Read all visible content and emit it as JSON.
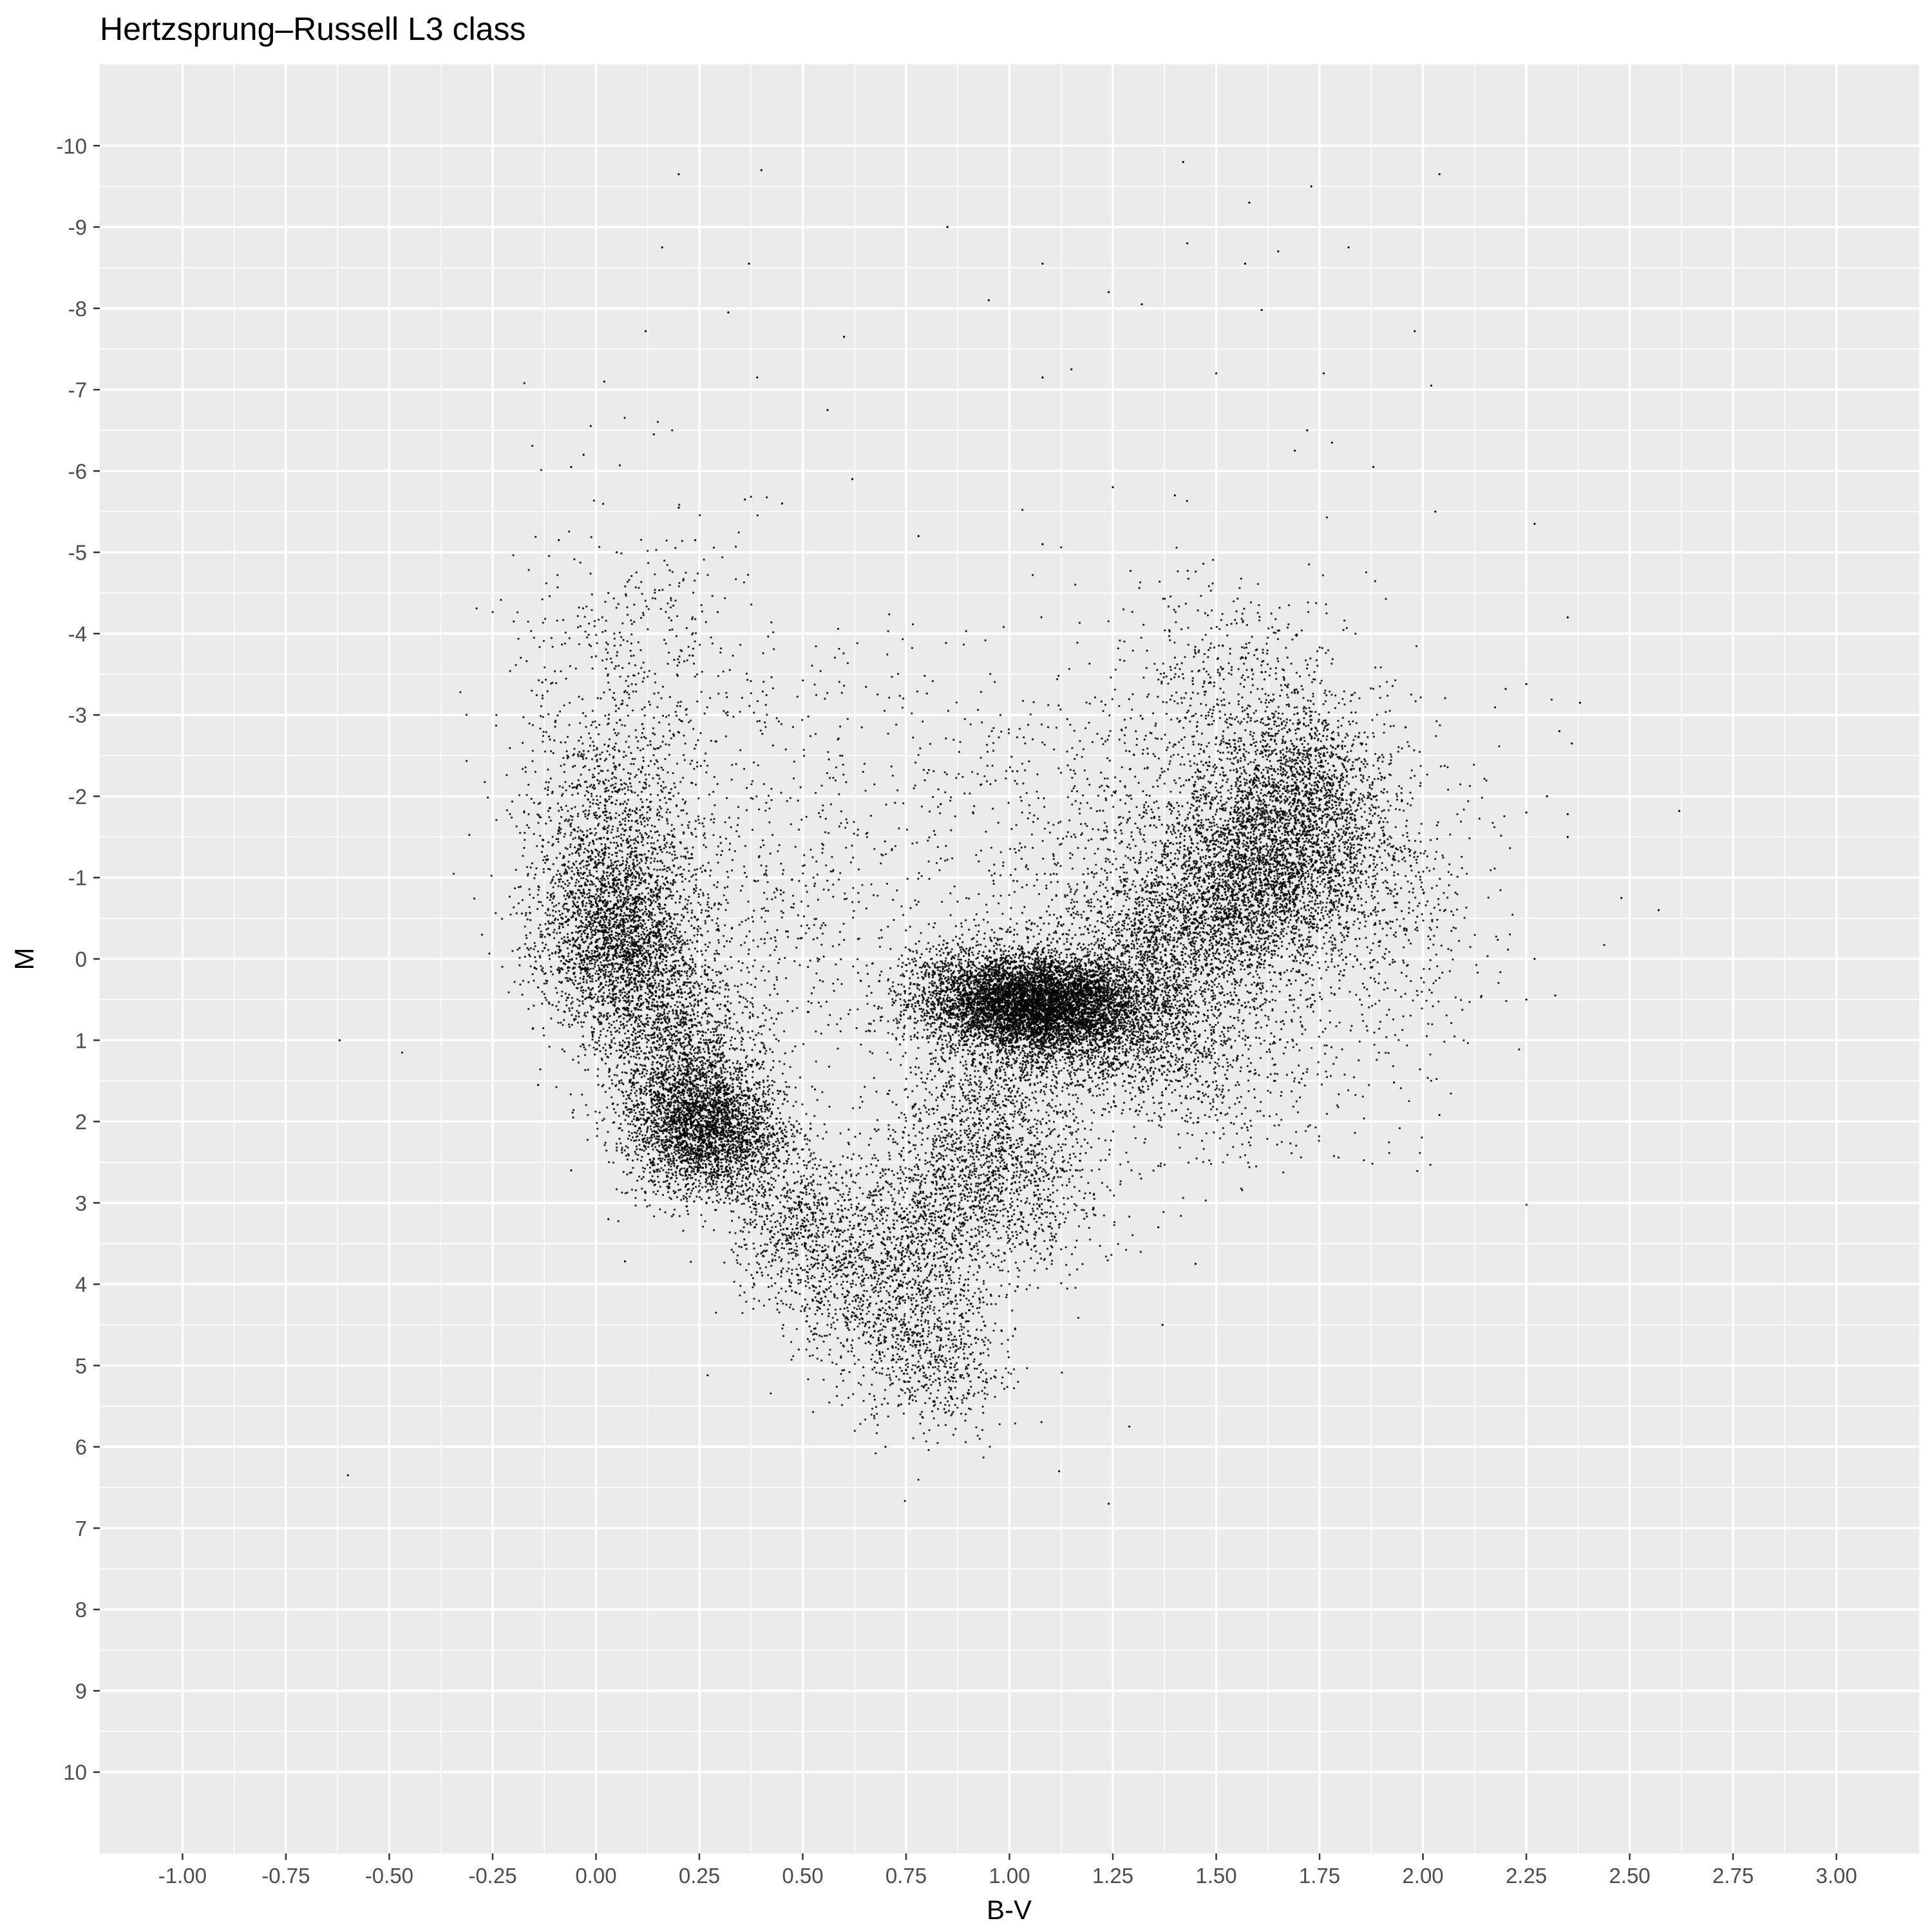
{
  "chart_data": {
    "type": "scatter",
    "title": "Hertzsprung–Russell L3 class",
    "xlabel": "B-V",
    "ylabel": "M",
    "xlim": [
      -1.2,
      3.2
    ],
    "ylim": [
      11.0,
      -11.0
    ],
    "y_reversed": true,
    "grid": true,
    "legend": "none",
    "x_ticks": [
      "-1.00",
      "-0.75",
      "-0.50",
      "-0.25",
      "0.00",
      "0.25",
      "0.50",
      "0.75",
      "1.00",
      "1.25",
      "1.50",
      "1.75",
      "2.00",
      "2.25",
      "2.50",
      "2.75",
      "3.00"
    ],
    "y_ticks": [
      "-10",
      "-9",
      "-8",
      "-7",
      "-6",
      "-5",
      "-4",
      "-3",
      "-2",
      "-1",
      "0",
      "1",
      "2",
      "3",
      "4",
      "5",
      "6",
      "7",
      "8",
      "9",
      "10"
    ],
    "point_color": "#000000",
    "panel_background": "#ebebeb",
    "series": [
      {
        "points": [
          [
            -0.62,
            1.0
          ],
          [
            -0.6,
            6.35
          ],
          [
            0.2,
            -9.65
          ],
          [
            0.4,
            -9.7
          ],
          [
            1.42,
            -9.8
          ],
          [
            1.73,
            -9.5
          ],
          [
            2.04,
            -9.65
          ],
          [
            1.58,
            -9.3
          ],
          [
            0.85,
            -9.0
          ],
          [
            0.16,
            -8.75
          ],
          [
            0.37,
            -8.55
          ],
          [
            1.08,
            -8.55
          ],
          [
            1.57,
            -8.55
          ],
          [
            1.82,
            -8.75
          ],
          [
            1.43,
            -8.8
          ],
          [
            0.95,
            -8.1
          ],
          [
            1.24,
            -8.2
          ],
          [
            1.65,
            -8.7
          ],
          [
            0.32,
            -7.95
          ],
          [
            0.12,
            -7.72
          ],
          [
            0.6,
            -7.65
          ],
          [
            1.32,
            -8.05
          ],
          [
            1.98,
            -7.72
          ],
          [
            1.61,
            -7.98
          ],
          [
            0.39,
            -7.15
          ],
          [
            1.15,
            -7.25
          ],
          [
            1.08,
            -7.15
          ],
          [
            1.5,
            -7.2
          ],
          [
            1.76,
            -7.2
          ],
          [
            2.02,
            -7.05
          ],
          [
            0.02,
            -7.1
          ],
          [
            1.72,
            -6.5
          ],
          [
            1.78,
            -6.35
          ],
          [
            0.14,
            -6.45
          ],
          [
            0.56,
            -6.75
          ],
          [
            1.69,
            -6.25
          ],
          [
            -0.03,
            -6.2
          ],
          [
            -0.06,
            -6.05
          ],
          [
            1.88,
            -6.05
          ],
          [
            0.62,
            -5.9
          ],
          [
            1.25,
            -5.8
          ],
          [
            1.4,
            -5.7
          ],
          [
            0.45,
            -5.6
          ],
          [
            0.36,
            -5.65
          ],
          [
            0.2,
            -5.55
          ],
          [
            2.03,
            -5.5
          ],
          [
            2.27,
            -5.35
          ],
          [
            0.78,
            -5.2
          ],
          [
            0.24,
            -5.15
          ],
          [
            1.08,
            -5.1
          ],
          [
            2.35,
            -4.2
          ],
          [
            2.38,
            -3.15
          ],
          [
            2.25,
            -3.38
          ],
          [
            2.2,
            -3.32
          ],
          [
            2.33,
            -2.8
          ],
          [
            2.36,
            -2.65
          ],
          [
            2.3,
            -2.0
          ],
          [
            2.25,
            -1.8
          ],
          [
            2.35,
            -1.5
          ],
          [
            2.48,
            -0.75
          ],
          [
            2.57,
            -0.6
          ],
          [
            2.62,
            -1.82
          ],
          [
            2.35,
            -1.78
          ],
          [
            2.27,
            0.0
          ],
          [
            2.25,
            0.5
          ],
          [
            2.32,
            0.45
          ],
          [
            2.04,
            1.92
          ],
          [
            1.93,
            1.52
          ],
          [
            1.36,
            3.3
          ],
          [
            1.45,
            3.75
          ],
          [
            1.37,
            4.5
          ],
          [
            1.29,
            5.75
          ],
          [
            1.24,
            6.7
          ],
          [
            1.12,
            6.3
          ],
          [
            0.7,
            6.0
          ],
          [
            0.27,
            5.12
          ],
          [
            0.07,
            3.72
          ],
          [
            0.03,
            3.2
          ],
          [
            -0.06,
            2.6
          ],
          [
            -0.14,
            1.55
          ],
          [
            -0.14,
            0.35
          ],
          [
            -0.13,
            -3.4
          ],
          [
            -0.09,
            -5.15
          ],
          [
            0.05,
            -5.0
          ],
          [
            0.03,
            -4.5
          ]
        ],
        "clusters": [
          {
            "center": [
              1.07,
              0.55
            ],
            "spread": [
              0.12,
              0.28
            ],
            "count": 5200
          },
          {
            "center": [
              1.2,
              0.75
            ],
            "spread": [
              0.18,
              0.45
            ],
            "count": 2600
          },
          {
            "center": [
              0.9,
              0.4
            ],
            "spread": [
              0.1,
              0.35
            ],
            "count": 900
          },
          {
            "center": [
              1.45,
              -0.4
            ],
            "spread": [
              0.18,
              0.5
            ],
            "count": 2000
          },
          {
            "center": [
              1.63,
              -1.3
            ],
            "spread": [
              0.14,
              0.55
            ],
            "count": 2800
          },
          {
            "center": [
              1.7,
              -2.3
            ],
            "spread": [
              0.1,
              0.45
            ],
            "count": 900
          },
          {
            "center": [
              1.55,
              -3.4
            ],
            "spread": [
              0.15,
              0.7
            ],
            "count": 500
          },
          {
            "center": [
              1.3,
              -1.9
            ],
            "spread": [
              0.25,
              0.9
            ],
            "count": 600
          },
          {
            "center": [
              0.06,
              -0.25
            ],
            "spread": [
              0.1,
              0.6
            ],
            "count": 2600
          },
          {
            "center": [
              0.04,
              -1.6
            ],
            "spread": [
              0.1,
              0.7
            ],
            "count": 900
          },
          {
            "center": [
              0.08,
              -3.4
            ],
            "spread": [
              0.15,
              1.0
            ],
            "count": 500
          },
          {
            "center": [
              0.2,
              0.95
            ],
            "spread": [
              0.1,
              0.5
            ],
            "count": 1200
          },
          {
            "center": [
              0.25,
              2.0
            ],
            "spread": [
              0.09,
              0.4
            ],
            "count": 2600
          },
          {
            "center": [
              0.33,
              2.4
            ],
            "spread": [
              0.1,
              0.35
            ],
            "count": 700
          },
          {
            "center": [
              0.5,
              3.3
            ],
            "spread": [
              0.09,
              0.45
            ],
            "count": 600
          },
          {
            "center": [
              0.68,
              4.1
            ],
            "spread": [
              0.12,
              0.55
            ],
            "count": 900
          },
          {
            "center": [
              0.82,
              5.0
            ],
            "spread": [
              0.09,
              0.45
            ],
            "count": 500
          },
          {
            "center": [
              0.95,
              2.2
            ],
            "spread": [
              0.12,
              0.55
            ],
            "count": 1100
          },
          {
            "center": [
              0.82,
              3.2
            ],
            "spread": [
              0.12,
              0.5
            ],
            "count": 800
          },
          {
            "center": [
              1.05,
              3.1
            ],
            "spread": [
              0.1,
              0.5
            ],
            "count": 300
          },
          {
            "center": [
              0.6,
              -1.6
            ],
            "spread": [
              0.3,
              1.5
            ],
            "count": 450
          },
          {
            "center": [
              0.45,
              -0.5
            ],
            "spread": [
              0.15,
              1.0
            ],
            "count": 250
          },
          {
            "center": [
              1.9,
              -0.6
            ],
            "spread": [
              0.15,
              1.0
            ],
            "count": 500
          },
          {
            "center": [
              1.45,
              1.5
            ],
            "spread": [
              0.2,
              0.6
            ],
            "count": 500
          }
        ]
      }
    ]
  }
}
